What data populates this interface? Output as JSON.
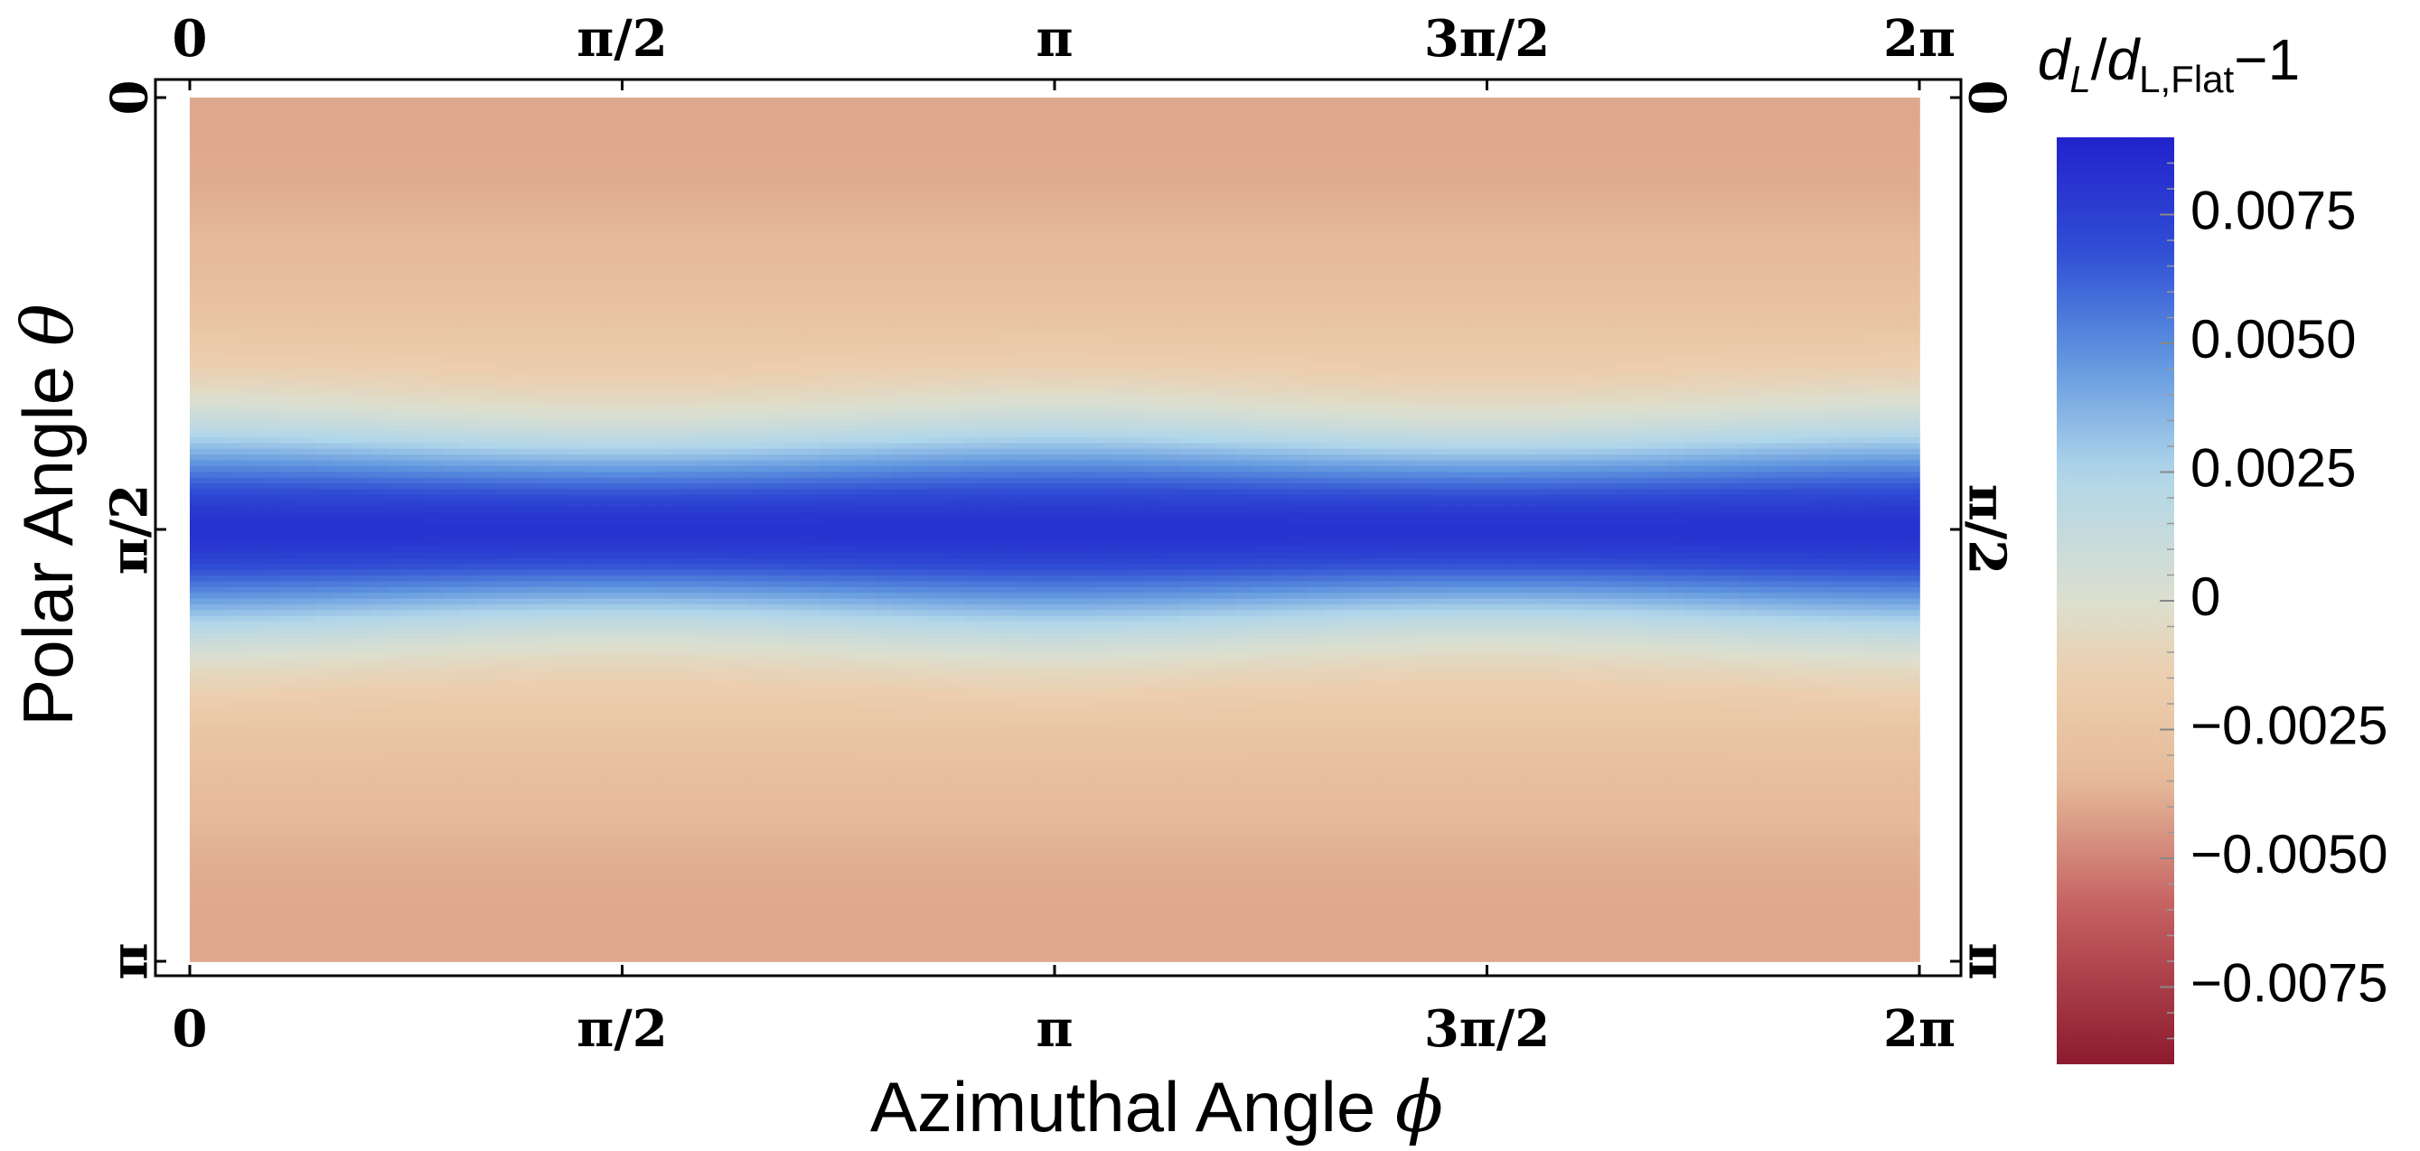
{
  "chart_data": {
    "type": "heatmap",
    "xlabel": "Azimuthal Angle",
    "xlabel_symbol": "ϕ",
    "ylabel": "Polar Angle",
    "ylabel_symbol": "θ",
    "x_ticks": [
      "0",
      "π/2",
      "π",
      "3π/2",
      "2π"
    ],
    "x_tick_values": [
      0,
      1.5708,
      3.1416,
      4.7124,
      6.2832
    ],
    "y_ticks": [
      "0",
      "π/2",
      "π"
    ],
    "y_tick_values": [
      0,
      1.5708,
      3.1416
    ],
    "xlim": [
      0,
      6.2832
    ],
    "ylim": [
      0,
      3.1416
    ],
    "colorbar": {
      "title_d": "d",
      "title_sub1": "L",
      "title_slash": "/",
      "title_sub2": "L,Flat",
      "title_tail": "−1",
      "range": [
        -0.009,
        0.009
      ],
      "ticks": [
        "0.0075",
        "0.0050",
        "0.0025",
        "0",
        "−0.0025",
        "−0.0050",
        "−0.0075"
      ],
      "tick_values": [
        0.0075,
        0.005,
        0.0025,
        0,
        -0.0025,
        -0.005,
        -0.0075
      ],
      "colors": {
        "high": "#2222cc",
        "mid": "#dcdfcf",
        "low": "#8c1a2e"
      }
    },
    "grid": false,
    "field": {
      "description_values": "value peaks near θ=π/2 (~0.0090) and is about −0.0040 at θ=0 and θ=π, with mild ϕ modulation (stronger near ϕ=π/2 and 3π/2)",
      "max": 0.009,
      "min_at_poles": -0.004
    }
  }
}
